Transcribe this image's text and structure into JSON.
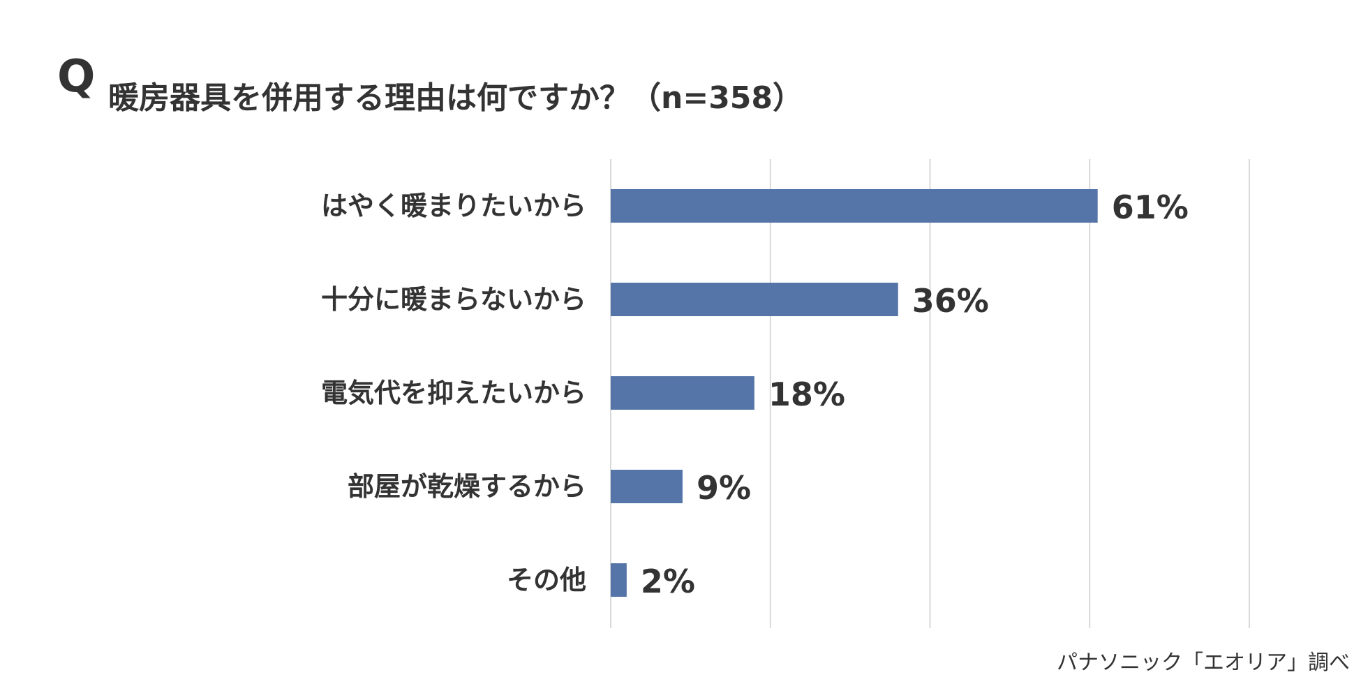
{
  "q_mark": "Q",
  "title": "暖房器具を併用する理由は何ですか？（n=358）",
  "source": "パナソニック「エオリア」調べ",
  "colors": {
    "bar": "#5574a8",
    "text": "#333333",
    "grid": "#d9d9d9"
  },
  "chart_data": {
    "type": "bar",
    "orientation": "horizontal",
    "categories": [
      "はやく暖まりたいから",
      "十分に暖まらないから",
      "電気代を抑えたいから",
      "部屋が乾燥するから",
      "その他"
    ],
    "values": [
      61,
      36,
      18,
      9,
      2
    ],
    "value_labels": [
      "61%",
      "36%",
      "18%",
      "9%",
      "2%"
    ],
    "xlim": [
      0,
      80
    ],
    "x_gridlines": [
      0,
      20,
      40,
      60,
      80
    ],
    "grid": true,
    "legend": "none"
  }
}
